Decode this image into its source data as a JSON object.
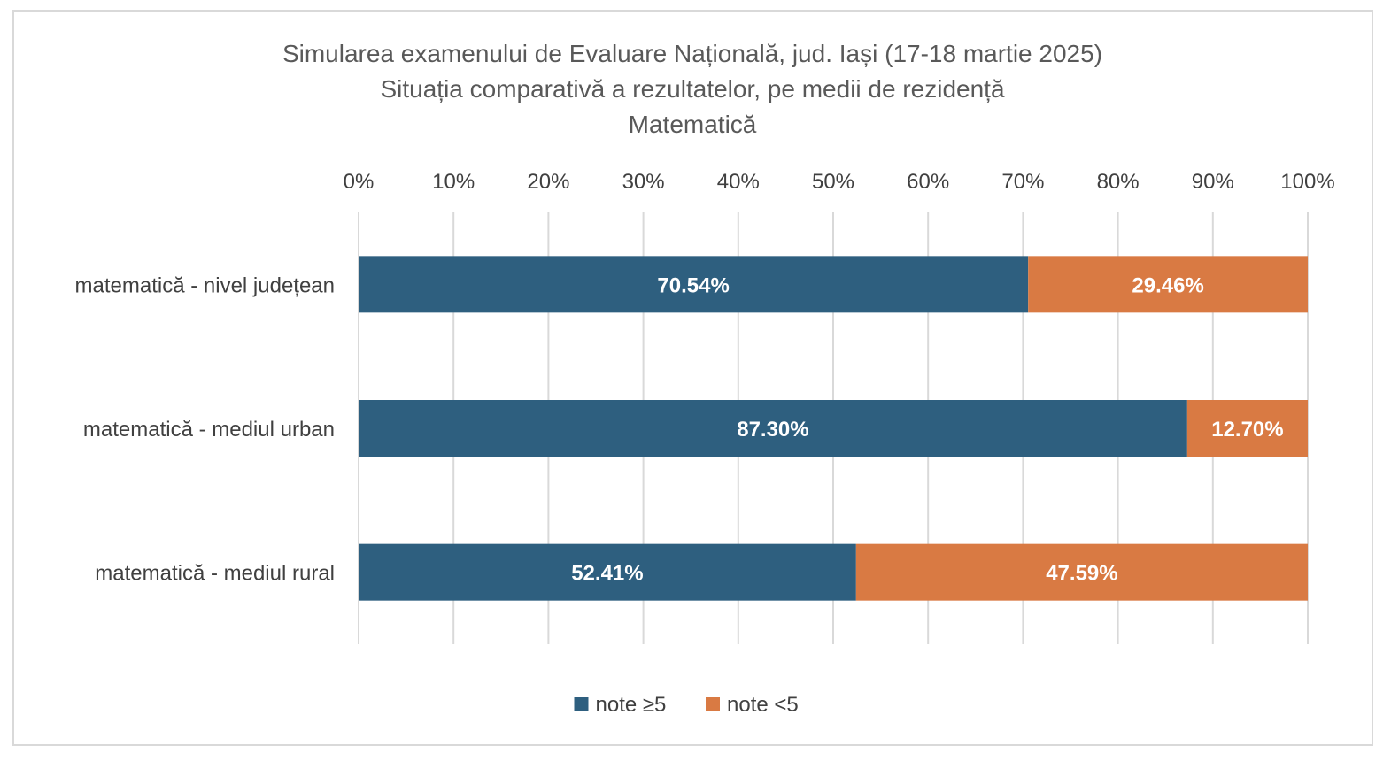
{
  "chart_data": {
    "type": "bar",
    "orientation": "horizontal",
    "stacked": true,
    "title": [
      "Simularea examenului de Evaluare Națională, jud. Iași (17-18 martie 2025)",
      "Situația comparativă a rezultatelor, pe medii de rezidență",
      "Matematică"
    ],
    "categories": [
      "matematică - nivel județean",
      "matematică - mediul urban",
      "matematică - mediul rural"
    ],
    "series": [
      {
        "name": "note ≥5",
        "color": "#2e5f7f",
        "values": [
          70.54,
          87.3,
          52.41
        ],
        "labels": [
          "70.54%",
          "87.30%",
          "52.41%"
        ]
      },
      {
        "name": "note <5",
        "color": "#d97a43",
        "values": [
          29.46,
          12.7,
          47.59
        ],
        "labels": [
          "29.46%",
          "12.70%",
          "47.59%"
        ]
      }
    ],
    "xlim": [
      0,
      100
    ],
    "x_ticks": [
      "0%",
      "10%",
      "20%",
      "30%",
      "40%",
      "50%",
      "60%",
      "70%",
      "80%",
      "90%",
      "100%"
    ],
    "x_axis_position": "top",
    "grid": true,
    "legend_position": "bottom"
  }
}
